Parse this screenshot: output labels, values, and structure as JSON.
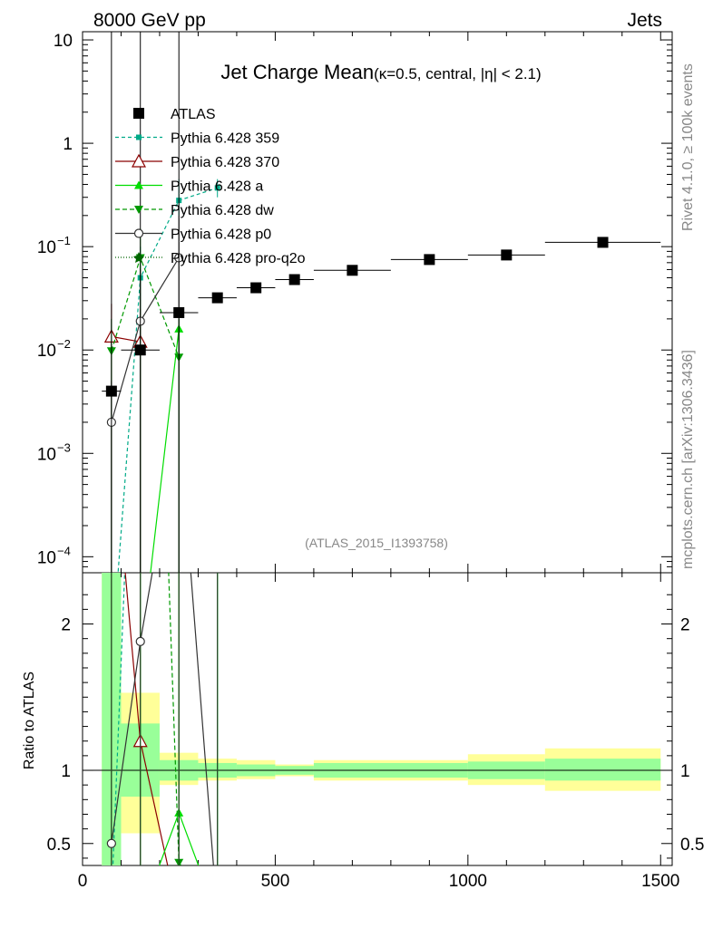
{
  "header": {
    "left": "8000 GeV pp",
    "right": "Jets"
  },
  "side": {
    "rivet": "Rivet 4.1.0, ≥ 100k events",
    "mcplots": "mcplots.cern.ch [arXiv:1306.3436]"
  },
  "chart_data": {
    "type": "scatter",
    "title_main": "Jet Charge Mean",
    "title_sub": "(κ=0.5, central, |η| < 2.1)",
    "analysis": "(ATLAS_2015_I1393758)",
    "ratio_ylabel": "Ratio to ATLAS",
    "top_yaxis": {
      "scale": "log",
      "ylim": [
        7e-05,
        12
      ],
      "ticks": [
        0.0001,
        0.001,
        0.01,
        0.1,
        1,
        10
      ],
      "tick_labels": [
        "10",
        "10",
        "10",
        "10",
        "1",
        "10"
      ],
      "tick_exps": [
        "−4",
        "−3",
        "−2",
        "−1",
        "",
        ""
      ]
    },
    "xaxis": {
      "xlim": [
        0,
        1530
      ],
      "ticks": [
        0,
        500,
        1000,
        1500
      ],
      "tick_labels": [
        "0",
        "500",
        "1000",
        "1500"
      ]
    },
    "ratio_yaxis": {
      "ylim": [
        0.35,
        2.35
      ],
      "ticks": [
        0.5,
        1,
        2
      ],
      "tick_labels": [
        "0.5",
        "1",
        "2"
      ]
    },
    "atlas": {
      "name": "ATLAS",
      "x": [
        75,
        150,
        250,
        350,
        450,
        550,
        700,
        900,
        1100,
        1350
      ],
      "xerr": [
        [
          50,
          100
        ],
        [
          100,
          200
        ],
        [
          200,
          300
        ],
        [
          300,
          400
        ],
        [
          400,
          500
        ],
        [
          500,
          600
        ],
        [
          600,
          800
        ],
        [
          800,
          1000
        ],
        [
          1000,
          1200
        ],
        [
          1200,
          1500
        ]
      ],
      "y": [
        0.004,
        0.01,
        0.023,
        0.032,
        0.04,
        0.048,
        0.059,
        0.075,
        0.083,
        0.11
      ]
    },
    "bands": {
      "inner": [
        [
          50,
          100,
          0.35,
          2.35
        ],
        [
          100,
          200,
          0.82,
          1.32
        ],
        [
          200,
          300,
          0.93,
          1.07
        ],
        [
          300,
          400,
          0.95,
          1.05
        ],
        [
          400,
          500,
          0.96,
          1.04
        ],
        [
          500,
          600,
          0.97,
          1.03
        ],
        [
          600,
          1000,
          0.95,
          1.05
        ],
        [
          1000,
          1200,
          0.94,
          1.06
        ],
        [
          1200,
          1500,
          0.93,
          1.08
        ]
      ],
      "outer": [
        [
          50,
          100,
          0.35,
          2.35
        ],
        [
          100,
          200,
          0.57,
          1.53
        ],
        [
          200,
          300,
          0.9,
          1.12
        ],
        [
          300,
          400,
          0.93,
          1.08
        ],
        [
          400,
          500,
          0.94,
          1.07
        ],
        [
          500,
          600,
          0.96,
          1.04
        ],
        [
          600,
          1000,
          0.93,
          1.07
        ],
        [
          1000,
          1200,
          0.9,
          1.11
        ],
        [
          1200,
          1500,
          0.86,
          1.15
        ]
      ]
    },
    "series": [
      {
        "name": "Pythia 6.428 359",
        "color": "#00aa88",
        "dash": "4,3",
        "marker": "square-small",
        "x": [
          75,
          150,
          250,
          350
        ],
        "y": [
          1e-05,
          0.05,
          0.28,
          0.37
        ],
        "yerr": [
          [
            1e-06,
            0.02
          ],
          [
            1e-05,
            0.1
          ],
          [
            0.2,
            0.45
          ],
          [
            0.3,
            0.45
          ]
        ],
        "ratio_x": [
          75,
          150,
          250,
          350
        ],
        "ratio_y": [
          0.1,
          5,
          12,
          11.5
        ]
      },
      {
        "name": "Pythia 6.428 370",
        "color": "#8b0000",
        "dash": "",
        "marker": "triangle-open",
        "x": [
          75,
          150
        ],
        "y": [
          0.0135,
          0.012
        ],
        "yerr": [
          [
            1e-05,
            0.028
          ],
          [
            1e-05,
            0.025
          ]
        ],
        "ratio_x": [
          75,
          150,
          250
        ],
        "ratio_y": [
          3.4,
          1.2,
          0.0
        ]
      },
      {
        "name": "Pythia 6.428 a",
        "color": "#00dd00",
        "dash": "",
        "marker": "triangle",
        "x": [
          75,
          150,
          250
        ],
        "y": [
          1e-05,
          1e-05,
          0.016
        ],
        "yerr": [
          [
            1e-06,
            1e-05
          ],
          [
            1e-06,
            1e-05
          ],
          [
            1e-05,
            0.02
          ]
        ],
        "ratio_x": [
          75,
          150,
          250,
          350
        ],
        "ratio_y": [
          0.0,
          0.0,
          0.71,
          0.0
        ]
      },
      {
        "name": "Pythia 6.428 dw",
        "color": "#009900",
        "dash": "5,3",
        "marker": "triangle-down",
        "x": [
          75,
          150,
          250
        ],
        "y": [
          0.0098,
          0.078,
          0.0085
        ],
        "yerr": [
          [
            1e-05,
            0.02
          ],
          [
            1e-05,
            0.15
          ],
          [
            1e-05,
            0.02
          ]
        ],
        "ratio_x": [
          75,
          150,
          250,
          350
        ],
        "ratio_y": [
          2.5,
          7.8,
          0.37,
          0.0
        ]
      },
      {
        "name": "Pythia 6.428 p0",
        "color": "#333333",
        "dash": "",
        "marker": "circle-open",
        "x": [
          75,
          150,
          250
        ],
        "y": [
          0.002,
          0.019,
          0.078
        ],
        "yerr": [
          [
            1e-05,
            0.005
          ],
          [
            1e-05,
            0.06
          ],
          [
            1e-05,
            0.2
          ]
        ],
        "ratio_x": [
          75,
          150,
          250,
          350
        ],
        "ratio_y": [
          0.5,
          1.88,
          3.4,
          0.0
        ]
      },
      {
        "name": "Pythia 6.428 pro-q2o",
        "color": "#006600",
        "dash": "1,2",
        "marker": "star",
        "x": [],
        "y": [],
        "yerr": [],
        "ratio_x": [],
        "ratio_y": []
      }
    ]
  }
}
